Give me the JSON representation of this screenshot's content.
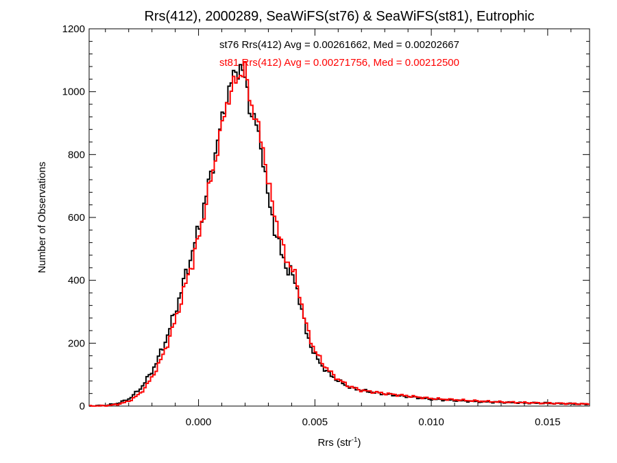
{
  "chart_data": {
    "type": "line",
    "subtype": "step-histogram",
    "title": "Rrs(412), 2000289, SeaWiFS(st76) & SeaWiFS(st81), Eutrophic",
    "xlabel_base": "Rrs (str",
    "xlabel_sup": "-1",
    "xlabel_close": ")",
    "ylabel": "Number of Observations",
    "xlim": [
      -0.0047,
      0.0168
    ],
    "ylim": [
      0,
      1200
    ],
    "grid": false,
    "x_ticks": [
      {
        "value": 0.0,
        "label": "0.000"
      },
      {
        "value": 0.005,
        "label": "0.005"
      },
      {
        "value": 0.01,
        "label": "0.010"
      },
      {
        "value": 0.015,
        "label": "0.015"
      }
    ],
    "y_ticks": [
      {
        "value": 0,
        "label": "0"
      },
      {
        "value": 200,
        "label": "200"
      },
      {
        "value": 400,
        "label": "400"
      },
      {
        "value": 600,
        "label": "600"
      },
      {
        "value": 800,
        "label": "800"
      },
      {
        "value": 1000,
        "label": "1000"
      },
      {
        "value": 1200,
        "label": "1200"
      }
    ],
    "annotations": [
      {
        "text": "st76 Rrs(412) Avg = 0.00261662, Med = 0.00202667",
        "color": "#000000"
      },
      {
        "text": "st81 Rrs(412) Avg = 0.00271756, Med = 0.00212500",
        "color": "#ff0000"
      }
    ],
    "series": [
      {
        "color": "#000000",
        "x": [
          -0.0047,
          -0.004,
          -0.0035,
          -0.003,
          -0.0025,
          -0.002,
          -0.0015,
          -0.001,
          -0.0005,
          0.0,
          0.0003,
          0.0006,
          0.0009,
          0.0012,
          0.0015,
          0.0018,
          0.002,
          0.0022,
          0.0025,
          0.0028,
          0.003,
          0.0033,
          0.0036,
          0.004,
          0.0043,
          0.0046,
          0.005,
          0.0055,
          0.006,
          0.0065,
          0.007,
          0.008,
          0.009,
          0.01,
          0.011,
          0.012,
          0.013,
          0.014,
          0.015,
          0.016,
          0.0168
        ],
        "values": [
          0,
          2,
          8,
          22,
          55,
          110,
          190,
          300,
          430,
          560,
          660,
          760,
          870,
          980,
          1050,
          1080,
          1040,
          950,
          890,
          780,
          650,
          560,
          470,
          420,
          360,
          240,
          160,
          110,
          80,
          60,
          50,
          38,
          30,
          22,
          18,
          14,
          12,
          10,
          9,
          7,
          6
        ]
      },
      {
        "color": "#ff0000",
        "x": [
          -0.0047,
          -0.004,
          -0.0035,
          -0.003,
          -0.0025,
          -0.002,
          -0.0015,
          -0.001,
          -0.0005,
          0.0,
          0.0003,
          0.0006,
          0.0009,
          0.0012,
          0.0015,
          0.0018,
          0.002,
          0.0022,
          0.0025,
          0.0028,
          0.003,
          0.0033,
          0.0036,
          0.004,
          0.0043,
          0.0046,
          0.005,
          0.0055,
          0.006,
          0.0065,
          0.007,
          0.008,
          0.009,
          0.01,
          0.011,
          0.012,
          0.013,
          0.014,
          0.015,
          0.016,
          0.0168
        ],
        "values": [
          0,
          1,
          5,
          15,
          40,
          90,
          165,
          270,
          400,
          530,
          640,
          740,
          850,
          960,
          1020,
          1060,
          1070,
          980,
          900,
          820,
          700,
          610,
          500,
          440,
          375,
          260,
          175,
          120,
          85,
          62,
          50,
          40,
          32,
          24,
          20,
          16,
          13,
          11,
          9,
          8,
          6
        ]
      }
    ]
  }
}
